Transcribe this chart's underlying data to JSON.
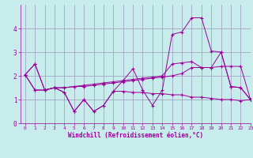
{
  "xlabel": "Windchill (Refroidissement éolien,°C)",
  "bg_color": "#c8ecec",
  "line_color": "#990099",
  "grid_color": "#9999bb",
  "xlim": [
    -0.5,
    23
  ],
  "ylim": [
    0,
    5
  ],
  "yticks": [
    0,
    1,
    2,
    3,
    4
  ],
  "xticks": [
    0,
    1,
    2,
    3,
    4,
    5,
    6,
    7,
    8,
    9,
    10,
    11,
    12,
    13,
    14,
    15,
    16,
    17,
    18,
    19,
    20,
    21,
    22,
    23
  ],
  "series": [
    [
      2.05,
      2.5,
      1.4,
      1.5,
      1.3,
      0.5,
      1.0,
      0.5,
      0.75,
      1.35,
      1.35,
      1.3,
      1.3,
      1.25,
      1.25,
      1.2,
      1.2,
      1.1,
      1.1,
      1.05,
      1.0,
      1.0,
      0.95,
      1.0
    ],
    [
      2.05,
      1.4,
      1.4,
      1.5,
      1.5,
      1.55,
      1.55,
      1.6,
      1.65,
      1.7,
      1.75,
      1.8,
      1.85,
      1.9,
      1.95,
      2.0,
      2.1,
      2.35,
      2.35,
      2.35,
      2.4,
      2.4,
      2.4,
      1.0
    ],
    [
      2.05,
      1.4,
      1.4,
      1.5,
      1.5,
      1.55,
      1.6,
      1.65,
      1.7,
      1.75,
      1.8,
      1.85,
      1.9,
      1.95,
      2.0,
      2.5,
      2.55,
      2.6,
      2.35,
      2.35,
      3.0,
      1.55,
      1.5,
      1.0
    ],
    [
      2.05,
      2.5,
      1.4,
      1.5,
      1.3,
      0.5,
      1.0,
      0.5,
      0.75,
      1.35,
      1.8,
      2.3,
      1.4,
      0.75,
      1.4,
      3.75,
      3.85,
      4.45,
      4.45,
      3.05,
      3.0,
      1.55,
      1.5,
      1.0
    ]
  ]
}
